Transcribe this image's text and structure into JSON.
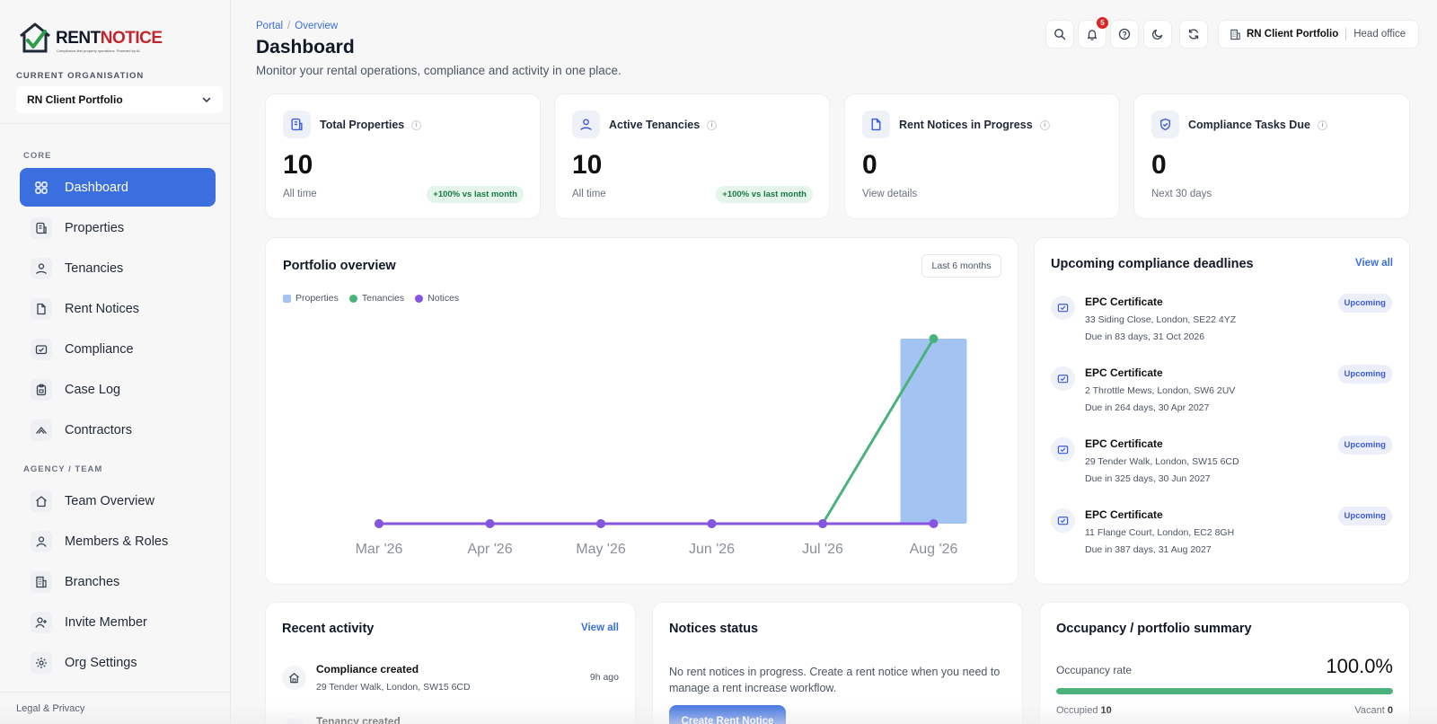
{
  "brand": {
    "name_part1": "RENT",
    "name_part2": "NOTICE",
    "tagline": "Compliance-first property operations. Powered by AI."
  },
  "sidebar": {
    "org_label": "CURRENT ORGANISATION",
    "org_value": "RN Client Portfolio",
    "core_label": "CORE",
    "core_items": [
      {
        "label": "Dashboard",
        "icon": "grid-icon",
        "active": true
      },
      {
        "label": "Properties",
        "icon": "property-icon"
      },
      {
        "label": "Tenancies",
        "icon": "tenancy-icon"
      },
      {
        "label": "Rent Notices",
        "icon": "document-icon"
      },
      {
        "label": "Compliance",
        "icon": "compliance-icon"
      },
      {
        "label": "Case Log",
        "icon": "clipboard-icon"
      },
      {
        "label": "Contractors",
        "icon": "contractor-icon"
      }
    ],
    "team_label": "AGENCY / TEAM",
    "team_items": [
      {
        "label": "Team Overview",
        "icon": "home-icon"
      },
      {
        "label": "Members & Roles",
        "icon": "person-icon"
      },
      {
        "label": "Branches",
        "icon": "building-icon"
      },
      {
        "label": "Invite Member",
        "icon": "invite-icon"
      },
      {
        "label": "Org Settings",
        "icon": "gear-icon"
      }
    ],
    "legal": "Legal & Privacy"
  },
  "header": {
    "breadcrumb": [
      "Portal",
      "Overview"
    ],
    "title": "Dashboard",
    "subtitle": "Monitor your rental operations, compliance and activity in one place.",
    "notification_count": "5",
    "org_name": "RN Client Portfolio",
    "branch": "Head office"
  },
  "stats": [
    {
      "title": "Total Properties",
      "value": "10",
      "sub": "All time",
      "trend": "+100% vs last month",
      "icon": "property-icon"
    },
    {
      "title": "Active Tenancies",
      "value": "10",
      "sub": "All time",
      "trend": "+100% vs last month",
      "icon": "tenancy-icon"
    },
    {
      "title": "Rent Notices in Progress",
      "value": "0",
      "sub": "View details",
      "trend": "",
      "icon": "document-icon"
    },
    {
      "title": "Compliance Tasks Due",
      "value": "0",
      "sub": "Next 30 days",
      "trend": "",
      "icon": "shield-icon"
    }
  ],
  "portfolio": {
    "title": "Portfolio overview",
    "range": "Last 6 months"
  },
  "chart_data": {
    "type": "bar",
    "categories": [
      "Mar '26",
      "Apr '26",
      "May '26",
      "Jun '26",
      "Jul '26",
      "Aug '26"
    ],
    "series": [
      {
        "name": "Properties",
        "type": "bar",
        "color": "#a3c4f3",
        "values": [
          0,
          0,
          0,
          0,
          0,
          10
        ]
      },
      {
        "name": "Tenancies",
        "type": "line",
        "color": "#4ab37c",
        "values": [
          0,
          0,
          0,
          0,
          0,
          10
        ]
      },
      {
        "name": "Notices",
        "type": "line",
        "color": "#8654e0",
        "values": [
          0,
          0,
          0,
          0,
          0,
          0
        ]
      }
    ],
    "ylim": [
      0,
      10
    ],
    "grid": false,
    "legend": "top-left"
  },
  "deadlines": {
    "title": "Upcoming compliance deadlines",
    "view_all": "View all",
    "items": [
      {
        "title": "EPC Certificate",
        "address": "33 Siding Close, London, SE22 4YZ",
        "due": "Due in 83 days, 31 Oct 2026",
        "status": "Upcoming"
      },
      {
        "title": "EPC Certificate",
        "address": "2 Throttle Mews, London, SW6 2UV",
        "due": "Due in 264 days, 30 Apr 2027",
        "status": "Upcoming"
      },
      {
        "title": "EPC Certificate",
        "address": "29 Tender Walk, London, SW15 6CD",
        "due": "Due in 325 days, 30 Jun 2027",
        "status": "Upcoming"
      },
      {
        "title": "EPC Certificate",
        "address": "11 Flange Court, London, EC2 8GH",
        "due": "Due in 387 days, 31 Aug 2027",
        "status": "Upcoming"
      }
    ]
  },
  "activity": {
    "title": "Recent activity",
    "view_all": "View all",
    "items": [
      {
        "title": "Compliance created",
        "address": "29 Tender Walk, London, SW15 6CD",
        "time": "9h ago"
      },
      {
        "title": "Tenancy created",
        "address": "",
        "time": ""
      }
    ]
  },
  "notices_status": {
    "title": "Notices status",
    "text": "No rent notices in progress. Create a rent notice when you need to manage a rent increase workflow.",
    "button": "Create Rent Notice"
  },
  "occupancy": {
    "title": "Occupancy / portfolio summary",
    "rate_label": "Occupancy rate",
    "rate_value": "100.0%",
    "rate_fraction": 1.0,
    "occupied_label": "Occupied",
    "occupied": "10",
    "vacant_label": "Vacant",
    "vacant": "0"
  }
}
